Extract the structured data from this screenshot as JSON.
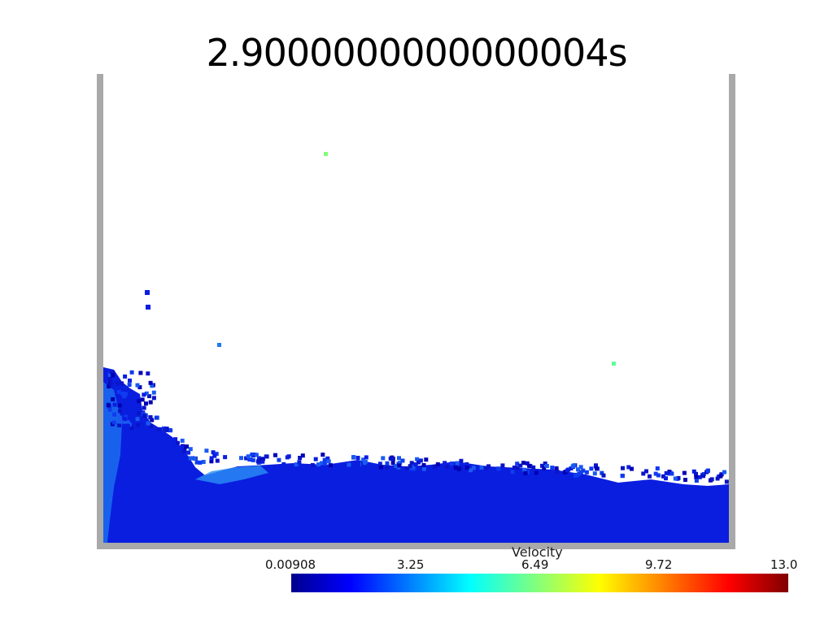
{
  "title": "2.9000000000000004s",
  "colorbar": {
    "label": "Velocity",
    "ticks": [
      "0.00908",
      "3.25",
      "6.49",
      "9.72",
      "13.0"
    ],
    "min": 0.00908,
    "max": 13.0,
    "colormap": "jet"
  },
  "colors": {
    "container_wall": "#a9a9a9",
    "background": "#ffffff",
    "fluid_base": "#0a1ee0"
  }
}
